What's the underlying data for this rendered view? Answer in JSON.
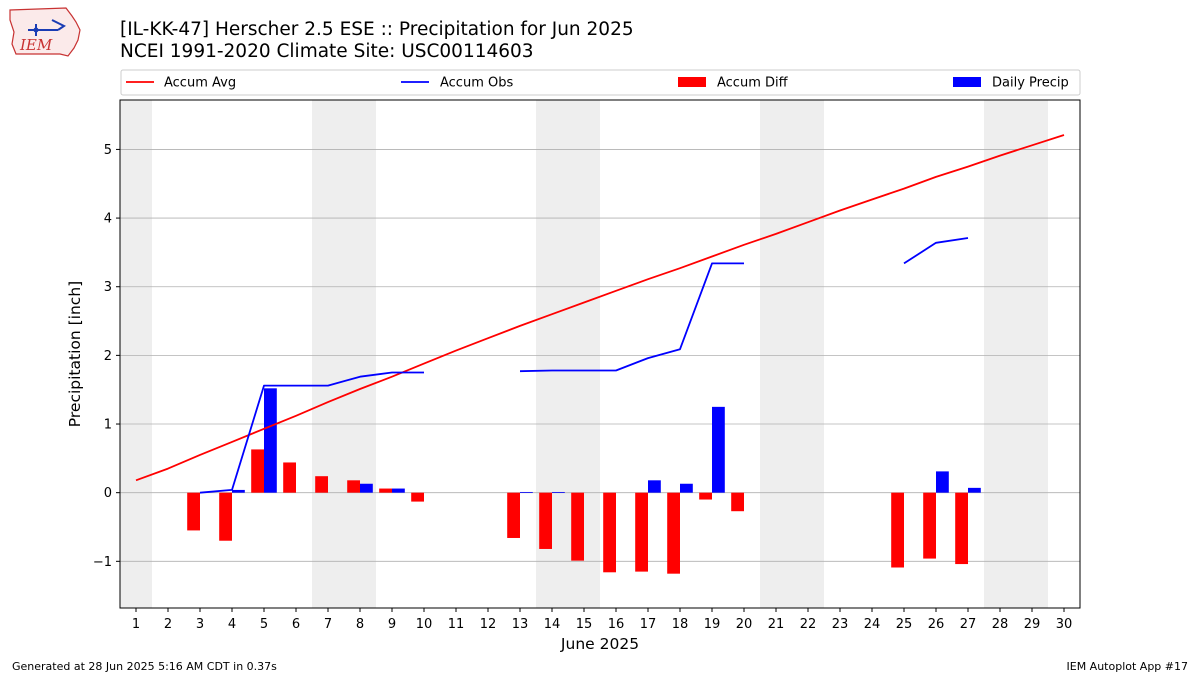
{
  "logo_text": "IEM",
  "footer": {
    "left": "Generated at 28 Jun 2025 5:16 AM CDT in 0.37s",
    "right": "IEM Autoplot App #17"
  },
  "chart_data": {
    "type": "bar",
    "title": "[IL-KK-47] Herscher 2.5 ESE :: Precipitation for Jun 2025",
    "subtitle": "NCEI 1991-2020 Climate Site: USC00114603",
    "xlabel": "June 2025",
    "ylabel": "Precipitation [inch]",
    "xlim": [
      0.5,
      30.5
    ],
    "ylim": [
      -1.68,
      5.72
    ],
    "yticks": [
      -1,
      0,
      1,
      2,
      3,
      4,
      5
    ],
    "yticklabels": [
      "−1",
      "0",
      "1",
      "2",
      "3",
      "4",
      "5"
    ],
    "days": [
      1,
      2,
      3,
      4,
      5,
      6,
      7,
      8,
      9,
      10,
      11,
      12,
      13,
      14,
      15,
      16,
      17,
      18,
      19,
      20,
      21,
      22,
      23,
      24,
      25,
      26,
      27,
      28,
      29,
      30
    ],
    "weekend_days": [
      1,
      7,
      8,
      14,
      15,
      21,
      22,
      28,
      29
    ],
    "grid": "y",
    "legend_position": "top",
    "colors": {
      "accum_avg": "#ff0000",
      "accum_obs": "#0000ff",
      "accum_diff": "#ff0000",
      "daily_precip": "#0000ff",
      "weekend": "#eeeeee",
      "grid": "#b0b0b0"
    },
    "series": [
      {
        "name": "Accum Avg",
        "kind": "line",
        "values": [
          0.18,
          0.35,
          0.55,
          0.74,
          0.93,
          1.12,
          1.32,
          1.51,
          1.69,
          1.88,
          2.07,
          2.25,
          2.43,
          2.6,
          2.77,
          2.94,
          3.11,
          3.27,
          3.44,
          3.61,
          3.77,
          3.94,
          4.11,
          4.27,
          4.43,
          4.6,
          4.75,
          4.91,
          5.06,
          5.21
        ]
      },
      {
        "name": "Accum Obs",
        "kind": "line",
        "values": [
          null,
          null,
          0.0,
          0.04,
          1.56,
          1.56,
          1.56,
          1.69,
          1.75,
          1.75,
          null,
          null,
          1.77,
          1.78,
          1.78,
          1.78,
          1.96,
          2.09,
          3.34,
          3.34,
          null,
          null,
          null,
          null,
          3.34,
          3.64,
          3.71,
          null,
          null,
          null
        ]
      },
      {
        "name": "Accum Diff",
        "kind": "bar",
        "values": [
          null,
          null,
          -0.55,
          -0.7,
          0.63,
          0.44,
          0.24,
          0.18,
          0.06,
          -0.13,
          null,
          null,
          -0.66,
          -0.82,
          -0.99,
          -1.16,
          -1.15,
          -1.18,
          -0.1,
          -0.27,
          null,
          null,
          null,
          null,
          -1.09,
          -0.96,
          -1.04,
          null,
          null,
          null
        ]
      },
      {
        "name": "Daily Precip",
        "kind": "bar",
        "values": [
          null,
          null,
          0.0,
          0.04,
          1.52,
          0.0,
          0.0,
          0.13,
          0.06,
          0.0,
          null,
          null,
          0.01,
          0.01,
          0.0,
          0.0,
          0.18,
          0.13,
          1.25,
          0.0,
          null,
          null,
          null,
          null,
          0.0,
          0.31,
          0.07,
          null,
          null,
          null
        ]
      }
    ]
  }
}
